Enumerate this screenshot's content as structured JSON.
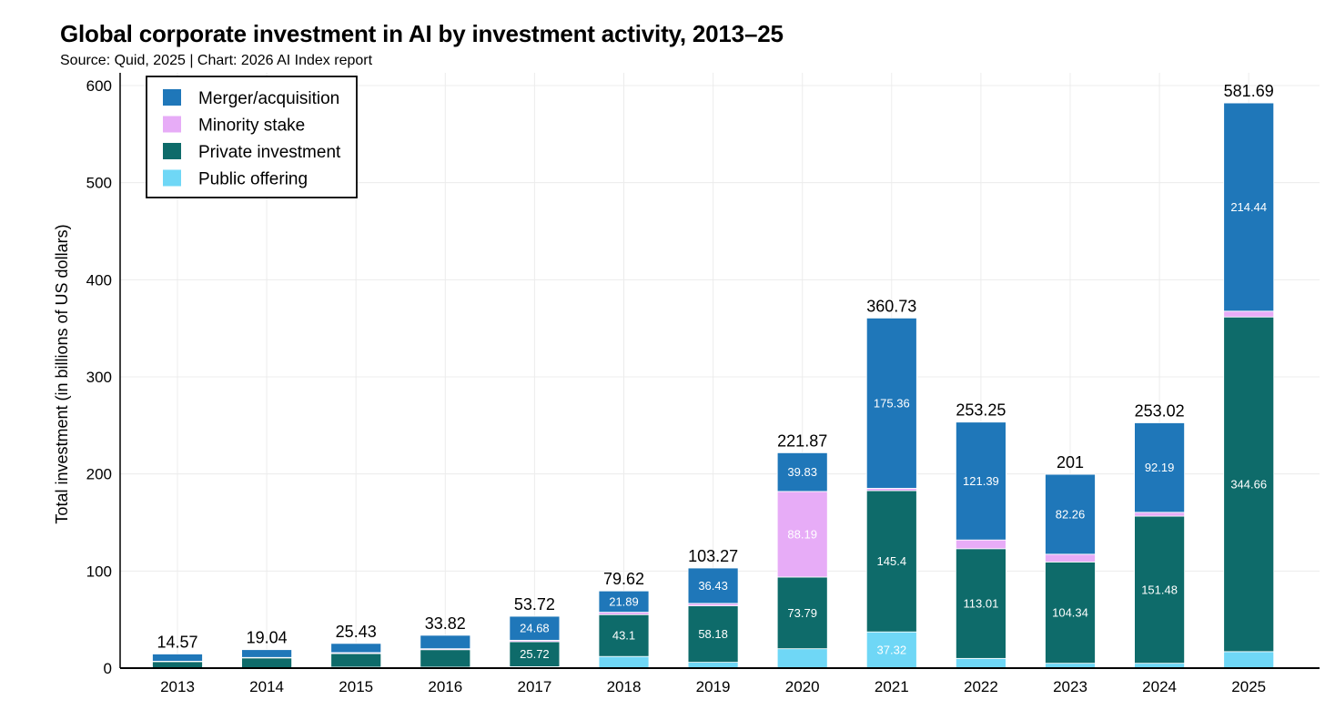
{
  "chart_data": {
    "type": "bar",
    "stacked": true,
    "title": "Global corporate investment in AI by investment activity, 2013–25",
    "subtitle": "Source: Quid, 2025 | Chart: 2026 AI Index report",
    "xlabel": "",
    "ylabel": "Total investment (in billions of US dollars)",
    "ylim": [
      0,
      600
    ],
    "yticks": [
      "0",
      "100",
      "200",
      "300",
      "400",
      "500",
      "600"
    ],
    "grid": true,
    "legend_position": "top-left",
    "categories": [
      "2013",
      "2014",
      "2015",
      "2016",
      "2017",
      "2018",
      "2019",
      "2020",
      "2021",
      "2022",
      "2023",
      "2024",
      "2025"
    ],
    "series": [
      {
        "name": "Public offering",
        "color": "#6fd7f6",
        "values": [
          0.3,
          0.5,
          1.0,
          1.0,
          1.5,
          12.0,
          6.0,
          20.0,
          37.32,
          10.0,
          5.0,
          5.0,
          17.0
        ]
      },
      {
        "name": "Private investment",
        "color": "#0e6b6a",
        "values": [
          6.5,
          10.0,
          14.0,
          18.0,
          25.72,
          43.1,
          58.18,
          73.79,
          145.4,
          113.01,
          104.34,
          151.48,
          344.66
        ]
      },
      {
        "name": "Minority stake",
        "color": "#e7acf7",
        "values": [
          0.3,
          0.5,
          1.0,
          1.0,
          1.5,
          2.5,
          2.5,
          88.19,
          2.5,
          9.0,
          8.0,
          4.0,
          6.0
        ]
      },
      {
        "name": "Merger/acquisition",
        "color": "#1f77b9",
        "values": [
          7.47,
          8.04,
          9.43,
          13.82,
          24.68,
          21.89,
          36.43,
          39.83,
          175.36,
          121.39,
          82.26,
          92.19,
          214.44
        ]
      }
    ],
    "segment_labels": [
      [
        null,
        null,
        null,
        null,
        null,
        null,
        null,
        null,
        "37.32",
        null,
        null,
        null,
        null
      ],
      [
        null,
        null,
        null,
        null,
        "25.72",
        "43.1",
        "58.18",
        "73.79",
        "145.4",
        "113.01",
        "104.34",
        "151.48",
        "344.66"
      ],
      [
        null,
        null,
        null,
        null,
        null,
        null,
        null,
        "88.19",
        null,
        null,
        null,
        null,
        null
      ],
      [
        null,
        null,
        null,
        null,
        "24.68",
        "21.89",
        "36.43",
        "39.83",
        "175.36",
        "121.39",
        "82.26",
        "92.19",
        "214.44"
      ]
    ],
    "totals": [
      "14.57",
      "19.04",
      "25.43",
      "33.82",
      "53.72",
      "79.62",
      "103.27",
      "221.87",
      "360.73",
      "253.25",
      "201",
      "253.02",
      "581.69"
    ],
    "legend_order": [
      "Merger/acquisition",
      "Minority stake",
      "Private investment",
      "Public offering"
    ]
  }
}
